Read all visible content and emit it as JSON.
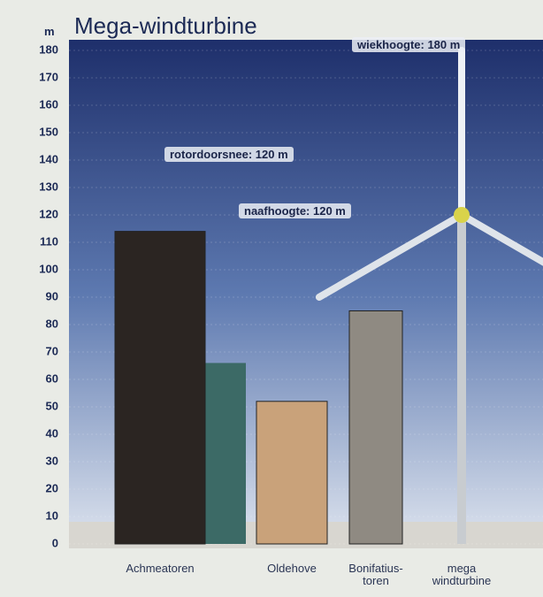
{
  "chart_data": {
    "type": "bar",
    "title": "Mega-windturbine",
    "y_unit": "m",
    "categories": [
      "Achmeatoren",
      "Oldehove",
      "Bonifatius-toren",
      "mega windturbine"
    ],
    "values": [
      114,
      52,
      85,
      180
    ],
    "colors": [
      "#2b2522",
      "#c9a27a",
      "#8f8a82",
      "#c8ccd0"
    ],
    "ylim": [
      0,
      180
    ],
    "yticks": [
      0,
      10,
      20,
      30,
      40,
      50,
      60,
      70,
      80,
      90,
      100,
      110,
      120,
      130,
      140,
      150,
      160,
      170,
      180
    ],
    "grid": true,
    "annotations": [
      {
        "text": "wiekhoogte: 180 m",
        "value": 180
      },
      {
        "text": "rotordoorsnee: 120 m",
        "value": 120
      },
      {
        "text": "naafhoogte: 120 m",
        "value": 120
      }
    ]
  }
}
